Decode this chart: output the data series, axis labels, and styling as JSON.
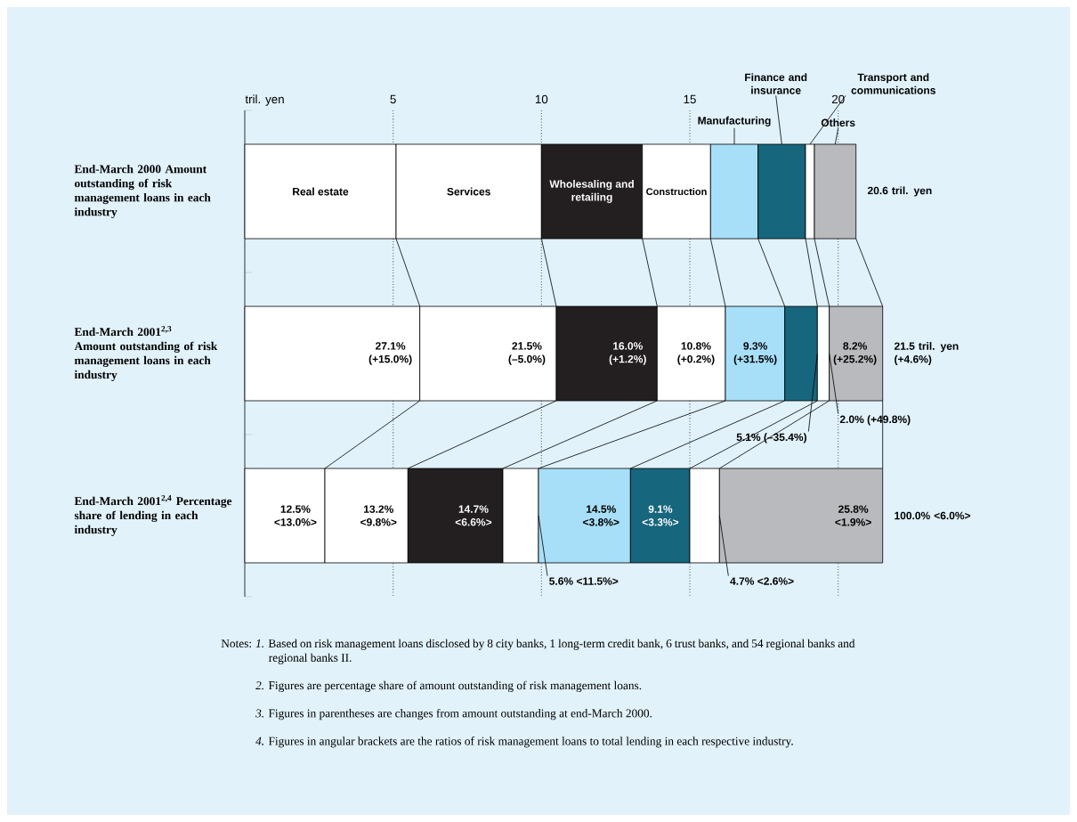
{
  "chart_data": {
    "type": "bar",
    "orientation": "horizontal",
    "stacked": true,
    "xlabel": "tril. yen",
    "categories": [
      "End-March 2000 Amount outstanding of risk management loans in each industry",
      "End-March 2001$^{2,3}$ Amount outstanding of risk management loans in each industry",
      "End-March 2001$^{2,4}$ Percentage share of lending in each industry"
    ],
    "series": [
      {
        "name": "Real estate",
        "color": "#ffffff",
        "values": [
          5.1,
          5.9,
          2.7
        ]
      },
      {
        "name": "Services",
        "color": "#ffffff",
        "values": [
          4.9,
          4.6,
          2.8
        ]
      },
      {
        "name": "Wholesaling and retailing",
        "color": "#231f20",
        "values": [
          3.4,
          3.4,
          3.2
        ]
      },
      {
        "name": "Construction",
        "color": "#ffffff",
        "values": [
          2.3,
          2.3,
          1.2
        ]
      },
      {
        "name": "Manufacturing",
        "color": "#a8dff8",
        "values": [
          1.6,
          2.0,
          3.1
        ]
      },
      {
        "name": "Finance and insurance",
        "color": "#16667e",
        "values": [
          1.6,
          1.1,
          2.0
        ]
      },
      {
        "name": "Transport and communications",
        "color": "#ffffff",
        "values": [
          0.3,
          0.4,
          1.0
        ]
      },
      {
        "name": "Others",
        "color": "#b9babd",
        "values": [
          1.4,
          1.8,
          5.5
        ]
      }
    ],
    "totals": [
      "20.6 tril. yen",
      "21.5 tril. yen (+4.6%)",
      "100.0% <6.0%>"
    ],
    "xlim": [
      0,
      21.5
    ],
    "xticks": [
      5,
      10,
      15,
      20
    ],
    "grid": "x",
    "annotations": [
      {
        "text": "27.1% (+15.0%)",
        "x": 5.9,
        "y": "End-March 2001$^{2,3}$ Amount outstanding of risk management loans in each industry"
      },
      {
        "text": "21.5% (–5.0%)",
        "x": 10.5,
        "y": "End-March 2001$^{2,3}$ Amount outstanding of risk management loans in each industry"
      },
      {
        "text": "16.0% (+1.2%)",
        "x": 13.9,
        "y": "End-March 2001$^{2,3}$ Amount outstanding of risk management loans in each industry"
      },
      {
        "text": "10.8% (+0.2%)",
        "x": 16.2,
        "y": "End-March 2001$^{2,3}$ Amount outstanding of risk management loans in each industry"
      },
      {
        "text": "9.3% (+31.5%)",
        "x": 18.2,
        "y": "End-March 2001$^{2,3}$ Amount outstanding of risk management loans in each industry"
      },
      {
        "text": "5.1% (–35.4%)",
        "x": 19.3,
        "y": "End-March 2001$^{2,3}$ Amount outstanding of risk management loans in each industry"
      },
      {
        "text": "2.0% (+49.8%)",
        "x": 19.7,
        "y": "End-March 2001$^{2,3}$ Amount outstanding of risk management loans in each industry"
      },
      {
        "text": "8.2% (+25.2%)",
        "x": 21.5,
        "y": "End-March 2001$^{2,3}$ Amount outstanding of risk management loans in each industry"
      },
      {
        "text": "12.5% <13.0%>",
        "x": 2.7,
        "y": "End-March 2001$^{2,4}$ Percentage share of lending in each industry"
      },
      {
        "text": "13.2% <9.8%>",
        "x": 5.5,
        "y": "End-March 2001$^{2,4}$ Percentage share of lending in each industry"
      },
      {
        "text": "14.7% <6.6%>",
        "x": 8.7,
        "y": "End-March 2001$^{2,4}$ Percentage share of lending in each industry"
      },
      {
        "text": "5.6% <11.5%>",
        "x": 9.9,
        "y": "End-March 2001$^{2,4}$ Percentage share of lending in each industry"
      },
      {
        "text": "14.5% <3.8%>",
        "x": 13.0,
        "y": "End-March 2001$^{2,4}$ Percentage share of lending in each industry"
      },
      {
        "text": "9.1% <3.3%>",
        "x": 15.0,
        "y": "End-March 2001$^{2,4}$ Percentage share of lending in each industry"
      },
      {
        "text": "4.7% <2.6%>",
        "x": 16.0,
        "y": "End-March 2001$^{2,4}$ Percentage share of lending in each industry"
      },
      {
        "text": "25.8% <1.9%>",
        "x": 21.5,
        "y": "End-March 2001$^{2,4}$ Percentage share of lending in each industry"
      },
      "Notes:",
      "*1.* Based on risk management loans disclosed by 8 city banks, 1 long-term credit bank, 6 trust banks, and 54 regional banks and regional banks II.",
      "*2.* Figures are percentage share of amount outstanding of risk management loans.",
      "*3.* Figures in parentheses are changes from amount outstanding at end-March 2000.",
      "*4.* Figures in angular brackets are the ratios of risk management loans to total lending in each respective industry."
    ]
  }
}
